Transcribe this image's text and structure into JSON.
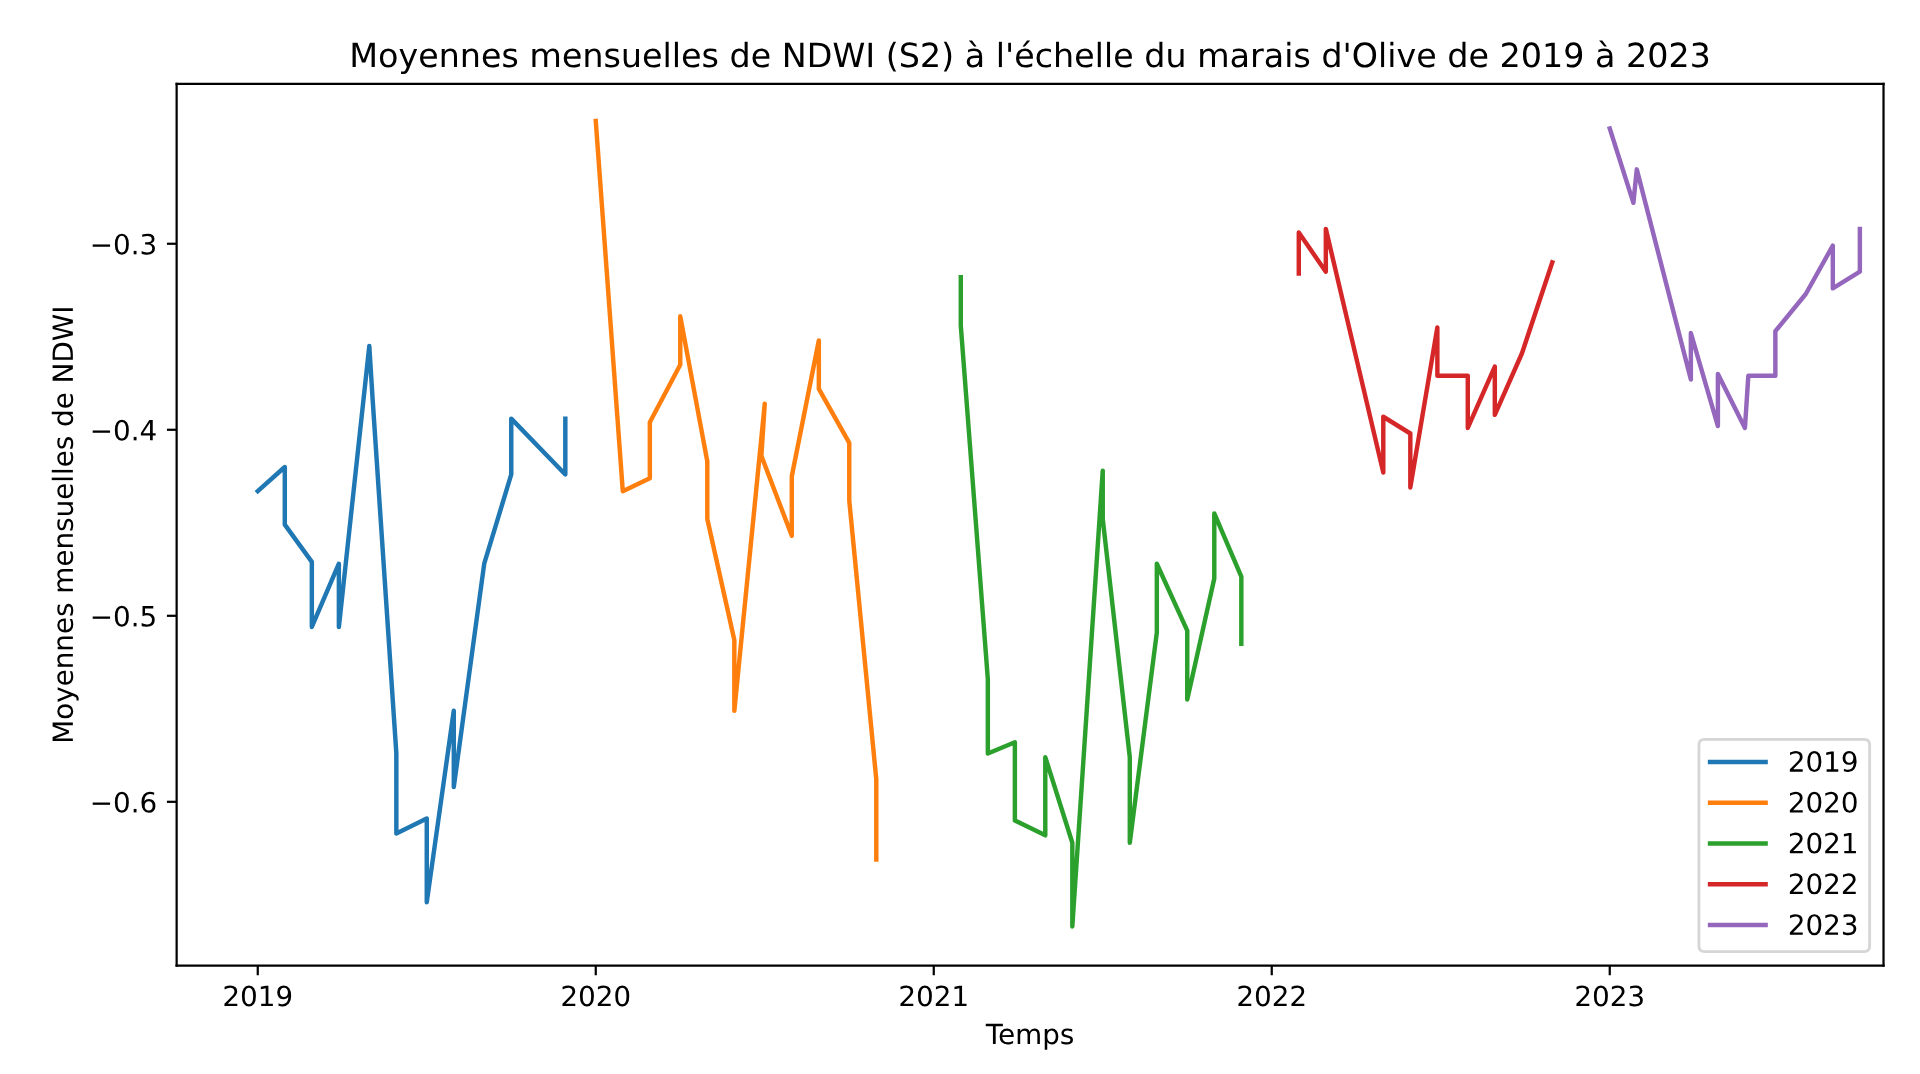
{
  "chart_data": {
    "type": "line",
    "title": "Moyennes mensuelles de NDWI (S2) à l'échelle du marais d'Olive de 2019 à 2023",
    "xlabel": "Temps",
    "ylabel": "Moyennes mensuelles de NDWI",
    "xlim": [
      2018.76,
      2023.81
    ],
    "xticks": [
      2019,
      2020,
      2021,
      2022,
      2023
    ],
    "ylim": [
      -0.688,
      -0.214
    ],
    "yticks": [
      {
        "value": -0.6,
        "label": "−0.6"
      },
      {
        "value": -0.5,
        "label": "−0.5"
      },
      {
        "value": -0.4,
        "label": "−0.4"
      },
      {
        "value": -0.3,
        "label": "−0.3"
      }
    ],
    "grid": false,
    "legend": "bottom right",
    "marker": "none",
    "line_style": "solid",
    "series": [
      {
        "name": "2019",
        "color": "#1f77b4",
        "x": [
          2019.0,
          2019.08,
          2019.08,
          2019.16,
          2019.16,
          2019.24,
          2019.24,
          2019.33,
          2019.34,
          2019.41,
          2019.41,
          2019.5,
          2019.5,
          2019.58,
          2019.58,
          2019.67,
          2019.75,
          2019.75,
          2019.91,
          2019.91
        ],
        "values": [
          -0.433,
          -0.42,
          -0.451,
          -0.471,
          -0.506,
          -0.472,
          -0.506,
          -0.355,
          -0.384,
          -0.574,
          -0.617,
          -0.609,
          -0.654,
          -0.551,
          -0.592,
          -0.472,
          -0.424,
          -0.394,
          -0.424,
          -0.394
        ]
      },
      {
        "name": "2020",
        "color": "#ff7f0e",
        "x": [
          2020.0,
          2020.08,
          2020.16,
          2020.16,
          2020.25,
          2020.25,
          2020.33,
          2020.33,
          2020.41,
          2020.41,
          2020.5,
          2020.49,
          2020.58,
          2020.58,
          2020.66,
          2020.66,
          2020.75,
          2020.75,
          2020.83,
          2020.83
        ],
        "values": [
          -0.234,
          -0.433,
          -0.426,
          -0.396,
          -0.365,
          -0.339,
          -0.417,
          -0.448,
          -0.513,
          -0.551,
          -0.386,
          -0.414,
          -0.457,
          -0.425,
          -0.352,
          -0.378,
          -0.407,
          -0.438,
          -0.588,
          -0.631
        ]
      },
      {
        "name": "2021",
        "color": "#2ca02c",
        "x": [
          2021.08,
          2021.08,
          2021.16,
          2021.16,
          2021.24,
          2021.24,
          2021.33,
          2021.33,
          2021.41,
          2021.41,
          2021.5,
          2021.5,
          2021.58,
          2021.58,
          2021.66,
          2021.66,
          2021.75,
          2021.75,
          2021.83,
          2021.83,
          2021.91,
          2021.91
        ],
        "values": [
          -0.318,
          -0.344,
          -0.534,
          -0.574,
          -0.568,
          -0.61,
          -0.618,
          -0.576,
          -0.622,
          -0.667,
          -0.422,
          -0.448,
          -0.576,
          -0.622,
          -0.509,
          -0.472,
          -0.508,
          -0.545,
          -0.48,
          -0.445,
          -0.479,
          -0.515
        ]
      },
      {
        "name": "2022",
        "color": "#d62728",
        "x": [
          2022.08,
          2022.08,
          2022.16,
          2022.16,
          2022.33,
          2022.33,
          2022.41,
          2022.41,
          2022.49,
          2022.49,
          2022.58,
          2022.58,
          2022.66,
          2022.66,
          2022.74,
          2022.83
        ],
        "values": [
          -0.316,
          -0.294,
          -0.315,
          -0.292,
          -0.423,
          -0.393,
          -0.402,
          -0.431,
          -0.345,
          -0.371,
          -0.371,
          -0.399,
          -0.366,
          -0.392,
          -0.359,
          -0.31
        ]
      },
      {
        "name": "2023",
        "color": "#9467bd",
        "x": [
          2023.0,
          2023.07,
          2023.08,
          2023.24,
          2023.24,
          2023.32,
          2023.32,
          2023.4,
          2023.41,
          2023.49,
          2023.49,
          2023.58,
          2023.66,
          2023.66,
          2023.74,
          2023.74
        ],
        "values": [
          -0.238,
          -0.278,
          -0.26,
          -0.373,
          -0.348,
          -0.398,
          -0.37,
          -0.399,
          -0.371,
          -0.371,
          -0.347,
          -0.327,
          -0.301,
          -0.324,
          -0.315,
          -0.292
        ]
      }
    ]
  }
}
